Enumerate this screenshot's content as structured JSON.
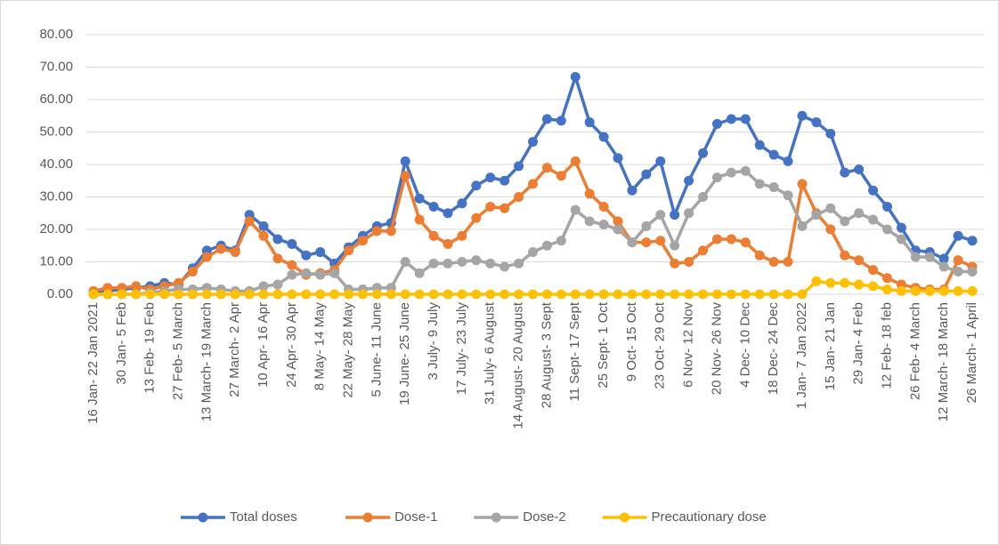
{
  "chart_data": {
    "type": "line",
    "categories": [
      "16 Jan- 22 Jan 2021",
      null,
      "30 Jan- 5 Feb",
      null,
      "13 Feb- 19 Feb",
      null,
      "27 Feb- 5 March",
      null,
      "13 March- 19 March",
      null,
      "27 March- 2 Apr",
      null,
      "10 Apr- 16 Apr",
      null,
      "24 Apr- 30 Apr",
      null,
      "8 May- 14 May",
      null,
      "22 May- 28 May",
      null,
      "5 June- 11 June",
      null,
      "19 June- 25 June",
      null,
      "3 July- 9 July",
      null,
      "17 July- 23 July",
      null,
      "31 July- 6 August",
      null,
      "14 August- 20 August",
      null,
      "28 August- 3 Sept",
      null,
      "11 Sept- 17 Sept",
      null,
      "25 Sept- 1 Oct",
      null,
      "9 Oct- 15 Oct",
      null,
      "23 Oct- 29 Oct",
      null,
      "6 Nov- 12 Nov",
      null,
      "20 Nov- 26 Nov",
      null,
      "4 Dec- 10 Dec",
      null,
      "18 Dec- 24 Dec",
      null,
      "1 Jan- 7 Jan 2022",
      null,
      "15 Jan- 21 Jan",
      null,
      "29 Jan- 4 Feb",
      null,
      "12 Feb- 18 feb",
      null,
      "26 Feb- 4 March",
      null,
      "12 March- 18 March",
      null,
      "26 March- 1 April"
    ],
    "series": [
      {
        "name": "Total doses",
        "color": "#4472c4",
        "values": [
          0.5,
          1,
          1.5,
          2,
          2.5,
          3.5,
          3,
          8,
          13.5,
          15,
          13.5,
          24.5,
          21,
          17,
          15.5,
          12,
          13,
          9.5,
          14.5,
          18,
          21,
          22,
          41,
          29.5,
          27,
          25,
          28,
          33.5,
          36,
          35,
          39.5,
          47,
          54,
          53.5,
          67,
          53,
          48.5,
          42,
          32,
          37,
          41,
          24.5,
          35,
          43.5,
          52.5,
          54,
          54,
          46,
          43,
          41,
          55,
          53,
          49.5,
          37.5,
          38.5,
          32,
          27,
          20.5,
          13.5,
          13,
          11,
          18,
          16.5
        ]
      },
      {
        "name": "Dose-1",
        "color": "#ed7d31",
        "values": [
          1,
          2,
          2,
          2.5,
          1.5,
          2.5,
          3.5,
          7,
          11.5,
          14,
          13,
          22.5,
          18,
          11,
          9,
          6,
          6.5,
          7.5,
          13.5,
          16.5,
          19.5,
          19.5,
          36.5,
          23,
          18,
          15.5,
          18,
          23.5,
          27,
          26.5,
          30,
          34,
          39,
          36.5,
          41,
          31,
          27,
          22.5,
          16,
          16,
          16.5,
          9.5,
          10,
          13.5,
          17,
          17,
          16,
          12,
          10,
          10,
          34,
          25,
          20,
          12,
          10.5,
          7.5,
          5,
          3,
          2,
          1.5,
          1.5,
          10.5,
          8.5
        ]
      },
      {
        "name": "Dose-2",
        "color": "#a5a5a5",
        "values": [
          0,
          0,
          0,
          0,
          0.5,
          1,
          1.5,
          1.5,
          2,
          1.5,
          1,
          1,
          2.5,
          3,
          6,
          6.5,
          6,
          6.5,
          1.5,
          1.5,
          2,
          2,
          10,
          6.5,
          9.5,
          9.5,
          10,
          10.5,
          9.5,
          8.5,
          9.5,
          13,
          15,
          16.5,
          26,
          22.5,
          21.5,
          20,
          16,
          21,
          24.5,
          15,
          25,
          30,
          36,
          37.5,
          38,
          34,
          33,
          30.5,
          21,
          24.5,
          26.5,
          22.5,
          25,
          23,
          20,
          17,
          11.5,
          11.5,
          8.5,
          7,
          7
        ]
      },
      {
        "name": "Precautionary dose",
        "color": "#ffc000",
        "values": [
          0,
          0,
          0,
          0,
          0,
          0,
          0,
          0,
          0,
          0,
          0,
          0,
          0,
          0,
          0,
          0,
          0,
          0,
          0,
          0,
          0,
          0,
          0,
          0,
          0,
          0,
          0,
          0,
          0,
          0,
          0,
          0,
          0,
          0,
          0,
          0,
          0,
          0,
          0,
          0,
          0,
          0,
          0,
          0,
          0,
          0,
          0,
          0,
          0,
          0,
          0,
          4,
          3.5,
          3.5,
          3,
          2.5,
          1.5,
          1,
          1,
          1,
          1,
          1,
          1
        ]
      }
    ],
    "ylim": [
      0,
      80
    ],
    "yticks": [
      {
        "value": 0,
        "label": "0.00"
      },
      {
        "value": 10,
        "label": "10.00"
      },
      {
        "value": 20,
        "label": "20.00"
      },
      {
        "value": 30,
        "label": "30.00"
      },
      {
        "value": 40,
        "label": "40.00"
      },
      {
        "value": 50,
        "label": "50.00"
      },
      {
        "value": 60,
        "label": "60.00"
      },
      {
        "value": 70,
        "label": "70.00"
      },
      {
        "value": 80,
        "label": "80.00"
      }
    ],
    "grid": true,
    "legend": "bottom"
  }
}
